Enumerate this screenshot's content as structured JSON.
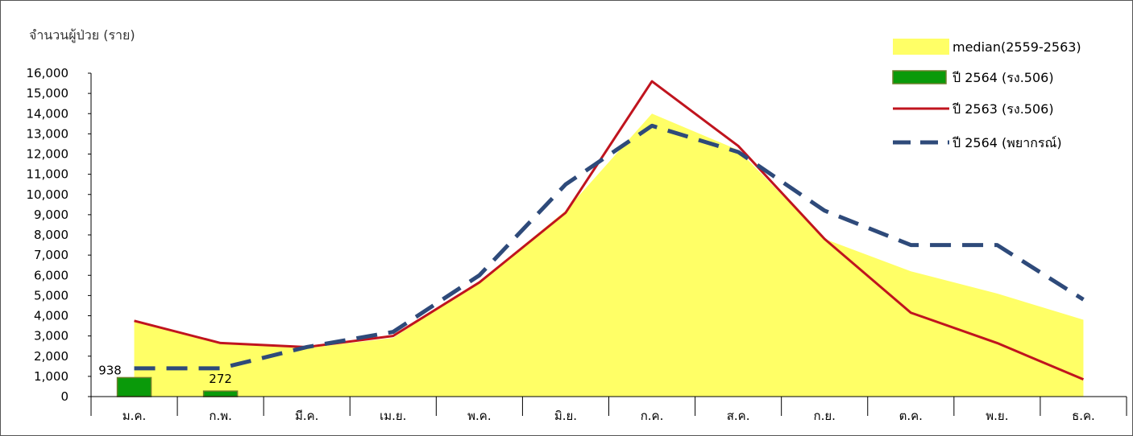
{
  "chart_data": {
    "type": "line",
    "ylabel": "จำนวนผู้ป่วย (ราย)",
    "xlabel": "",
    "ylim": [
      0,
      16000
    ],
    "yticks": [
      "0",
      "1,000",
      "2,000",
      "3,000",
      "4,000",
      "5,000",
      "6,000",
      "7,000",
      "8,000",
      "9,000",
      "10,000",
      "11,000",
      "12,000",
      "13,000",
      "14,000",
      "15,000",
      "16,000"
    ],
    "categories": [
      "ม.ค.",
      "ก.พ.",
      "มี.ค.",
      "เม.ย.",
      "พ.ค.",
      "มิ.ย.",
      "ก.ค.",
      "ส.ค.",
      "ก.ย.",
      "ต.ค.",
      "พ.ย.",
      "ธ.ค."
    ],
    "grid": false,
    "legend_position": "top-right",
    "series": [
      {
        "name": "median(2559-2563)",
        "kind": "area",
        "color": "#ffff66",
        "values": [
          3700,
          2600,
          2400,
          2900,
          5700,
          9200,
          14000,
          12200,
          7800,
          6200,
          5100,
          3800
        ]
      },
      {
        "name": "ปี 2564 (รง.506)",
        "kind": "bar",
        "color": "#0a9a0a",
        "values": [
          938,
          272,
          null,
          null,
          null,
          null,
          null,
          null,
          null,
          null,
          null,
          null
        ],
        "data_labels": [
          "938",
          "272"
        ]
      },
      {
        "name": "ปี 2563 (รง.506)",
        "kind": "line",
        "color": "#c0141e",
        "values": [
          3750,
          2650,
          2450,
          3000,
          5650,
          9100,
          15600,
          12400,
          7800,
          4150,
          2650,
          850
        ]
      },
      {
        "name": "ปี 2564 (พยากรณ์)",
        "kind": "dashed-line",
        "color": "#2e4a7a",
        "values": [
          1400,
          1400,
          2450,
          3200,
          6000,
          10500,
          13400,
          12100,
          9200,
          7500,
          7500,
          4800
        ]
      }
    ]
  }
}
